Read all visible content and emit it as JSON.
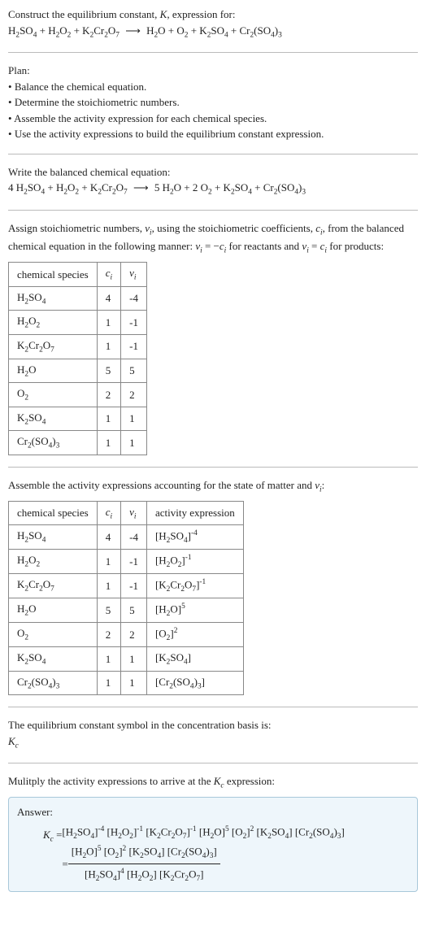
{
  "intro": {
    "line1": "Construct the equilibrium constant, ",
    "K": "K",
    "line1b": ", expression for:"
  },
  "reaction": {
    "reactants": [
      "H₂SO₄",
      "H₂O₂",
      "K₂Cr₂O₇"
    ],
    "products": [
      "H₂O",
      "O₂",
      "K₂SO₄",
      "Cr₂(SO₄)₃"
    ]
  },
  "plan": {
    "title": "Plan:",
    "bullets": [
      "Balance the chemical equation.",
      "Determine the stoichiometric numbers.",
      "Assemble the activity expression for each chemical species.",
      "Use the activity expressions to build the equilibrium constant expression."
    ]
  },
  "balanced": {
    "title": "Write the balanced chemical equation:",
    "reactants": [
      {
        "coef": "4",
        "sp": "H₂SO₄"
      },
      {
        "coef": "",
        "sp": "H₂O₂"
      },
      {
        "coef": "",
        "sp": "K₂Cr₂O₇"
      }
    ],
    "products": [
      {
        "coef": "5",
        "sp": "H₂O"
      },
      {
        "coef": "2",
        "sp": "O₂"
      },
      {
        "coef": "",
        "sp": "K₂SO₄"
      },
      {
        "coef": "",
        "sp": "Cr₂(SO₄)₃"
      }
    ]
  },
  "assign": {
    "text_a": "Assign stoichiometric numbers, ",
    "nu": "ν",
    "text_b": ", using the stoichiometric coefficients, ",
    "ci": "c",
    "text_c": ", from the balanced chemical equation in the following manner: ",
    "rel1": " = −",
    "text_d": " for reactants and ",
    "rel2": " = ",
    "text_e": " for products:"
  },
  "table1": {
    "headers": [
      "chemical species",
      "cᵢ",
      "νᵢ"
    ],
    "rows": [
      [
        "H₂SO₄",
        "4",
        "-4"
      ],
      [
        "H₂O₂",
        "1",
        "-1"
      ],
      [
        "K₂Cr₂O₇",
        "1",
        "-1"
      ],
      [
        "H₂O",
        "5",
        "5"
      ],
      [
        "O₂",
        "2",
        "2"
      ],
      [
        "K₂SO₄",
        "1",
        "1"
      ],
      [
        "Cr₂(SO₄)₃",
        "1",
        "1"
      ]
    ]
  },
  "assemble": {
    "text_a": "Assemble the activity expressions accounting for the state of matter and ",
    "text_b": ":"
  },
  "table2": {
    "headers": [
      "chemical species",
      "cᵢ",
      "νᵢ",
      "activity expression"
    ],
    "rows": [
      {
        "sp": "H₂SO₄",
        "c": "4",
        "v": "-4",
        "base": "[H₂SO₄]",
        "exp": "-4"
      },
      {
        "sp": "H₂O₂",
        "c": "1",
        "v": "-1",
        "base": "[H₂O₂]",
        "exp": "-1"
      },
      {
        "sp": "K₂Cr₂O₇",
        "c": "1",
        "v": "-1",
        "base": "[K₂Cr₂O₇]",
        "exp": "-1"
      },
      {
        "sp": "H₂O",
        "c": "5",
        "v": "5",
        "base": "[H₂O]",
        "exp": "5"
      },
      {
        "sp": "O₂",
        "c": "2",
        "v": "2",
        "base": "[O₂]",
        "exp": "2"
      },
      {
        "sp": "K₂SO₄",
        "c": "1",
        "v": "1",
        "base": "[K₂SO₄]",
        "exp": ""
      },
      {
        "sp": "Cr₂(SO₄)₃",
        "c": "1",
        "v": "1",
        "base": "[Cr₂(SO₄)₃]",
        "exp": ""
      }
    ]
  },
  "eqconst": {
    "line": "The equilibrium constant symbol in the concentration basis is:",
    "symbol": "K",
    "sub": "c"
  },
  "multiply": {
    "text_a": "Mulitply the activity expressions to arrive at the ",
    "text_b": " expression:"
  },
  "answer": {
    "label": "Answer:",
    "kc": "K",
    "kcsub": "c",
    "eq": " = ",
    "line1_terms": [
      {
        "b": "[H₂SO₄]",
        "e": "-4"
      },
      {
        "b": "[H₂O₂]",
        "e": "-1"
      },
      {
        "b": "[K₂Cr₂O₇]",
        "e": "-1"
      },
      {
        "b": "[H₂O]",
        "e": "5"
      },
      {
        "b": "[O₂]",
        "e": "2"
      },
      {
        "b": "[K₂SO₄]",
        "e": ""
      },
      {
        "b": "[Cr₂(SO₄)₃]",
        "e": ""
      }
    ],
    "eq2": "= ",
    "num_terms": [
      {
        "b": "[H₂O]",
        "e": "5"
      },
      {
        "b": "[O₂]",
        "e": "2"
      },
      {
        "b": "[K₂SO₄]",
        "e": ""
      },
      {
        "b": "[Cr₂(SO₄)₃]",
        "e": ""
      }
    ],
    "den_terms": [
      {
        "b": "[H₂SO₄]",
        "e": "4"
      },
      {
        "b": "[H₂O₂]",
        "e": ""
      },
      {
        "b": "[K₂Cr₂O₇]",
        "e": ""
      }
    ]
  }
}
